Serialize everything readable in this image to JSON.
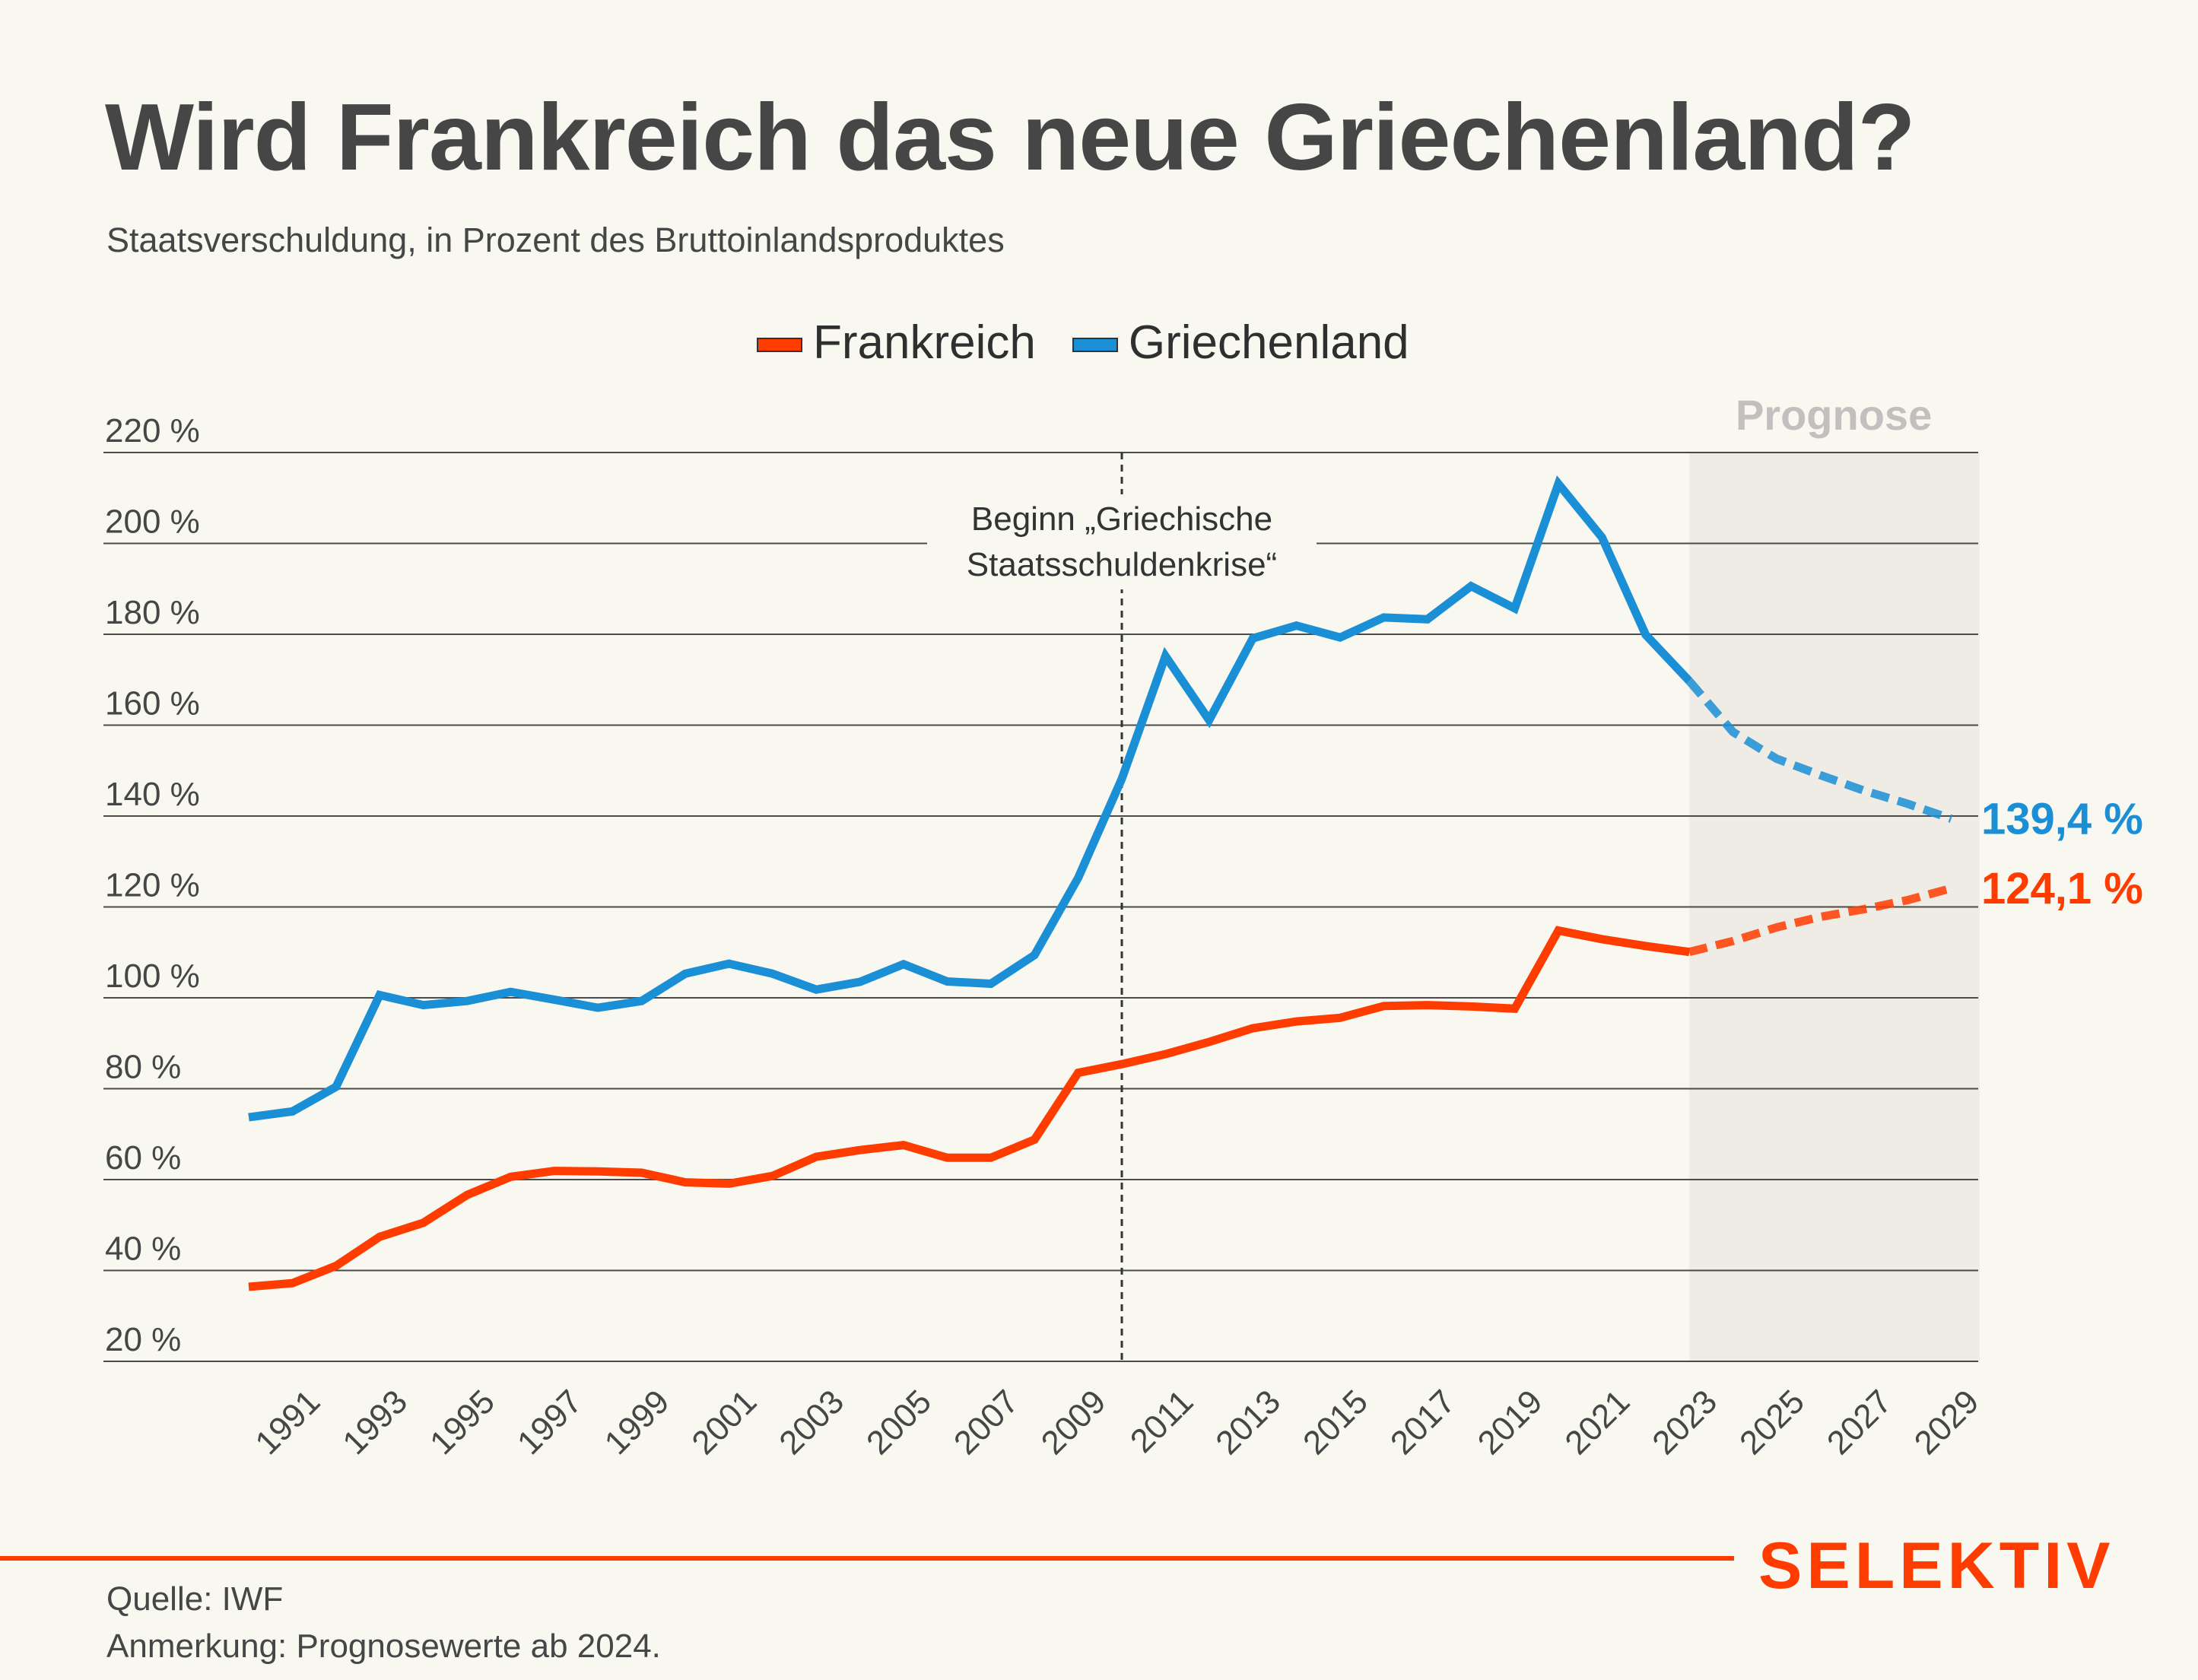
{
  "header": {
    "title": "Wird Frankreich das neue Griechenland?",
    "subtitle": "Staatsverschuldung, in Prozent des Bruttoinlandsproduktes"
  },
  "legend": [
    {
      "label": "Frankreich",
      "color": "#ff3c00"
    },
    {
      "label": "Griechenland",
      "color": "#1a8fd6"
    }
  ],
  "footer": {
    "source": "Quelle: IWF",
    "note": "Anmerkung: Prognosewerte ab 2024.",
    "brand": "SELEKTIV",
    "brand_color": "#ff3c00"
  },
  "chart_data": {
    "type": "line",
    "title": "Wird Frankreich das neue Griechenland?",
    "subtitle": "Staatsverschuldung, in Prozent des Bruttoinlandsproduktes",
    "xlabel": "",
    "ylabel": "",
    "x": [
      1990,
      1991,
      1992,
      1993,
      1994,
      1995,
      1996,
      1997,
      1998,
      1999,
      2000,
      2001,
      2002,
      2003,
      2004,
      2005,
      2006,
      2007,
      2008,
      2009,
      2010,
      2011,
      2012,
      2013,
      2014,
      2015,
      2016,
      2017,
      2018,
      2019,
      2020,
      2021,
      2022,
      2023,
      2024,
      2025,
      2026,
      2027,
      2028,
      2029
    ],
    "xticks": [
      "1991",
      "1993",
      "1995",
      "1997",
      "1999",
      "2001",
      "2003",
      "2005",
      "2007",
      "2009",
      "2011",
      "2013",
      "2015",
      "2017",
      "2019",
      "2021",
      "2023",
      "2025",
      "2027",
      "2029"
    ],
    "xtick_years": [
      1991,
      1993,
      1995,
      1997,
      1999,
      2001,
      2003,
      2005,
      2007,
      2009,
      2011,
      2013,
      2015,
      2017,
      2019,
      2021,
      2023,
      2025,
      2027,
      2029
    ],
    "ylim": [
      20,
      220
    ],
    "yticks": [
      20,
      40,
      60,
      80,
      100,
      120,
      140,
      160,
      180,
      200,
      220
    ],
    "ytick_labels": [
      "20 %",
      "40 %",
      "60 %",
      "80 %",
      "100 %",
      "120 %",
      "140 %",
      "160 %",
      "180 %",
      "200 %",
      "220 %"
    ],
    "grid": "horizontal",
    "legend_position": "top-center",
    "forecast_start_year": 2023,
    "forecast_label": "Prognose",
    "series": [
      {
        "name": "Frankreich",
        "color": "#ff3c00",
        "values": [
          36.4,
          37.2,
          41.0,
          47.4,
          50.5,
          56.6,
          60.6,
          61.9,
          61.8,
          61.5,
          59.4,
          59.1,
          60.8,
          65.0,
          66.5,
          67.6,
          64.8,
          64.8,
          68.8,
          83.5,
          85.4,
          87.6,
          90.3,
          93.3,
          94.8,
          95.6,
          98.2,
          98.4,
          98.1,
          97.6,
          114.8,
          112.9,
          111.4,
          110.1,
          112.5,
          115.5,
          117.8,
          119.5,
          121.5,
          124.1
        ],
        "end_label": "124,1 %"
      },
      {
        "name": "Griechenland",
        "color": "#1a8fd6",
        "values": [
          73.7,
          75.0,
          80.4,
          100.6,
          98.4,
          99.3,
          101.3,
          99.6,
          97.8,
          99.3,
          105.3,
          107.5,
          105.3,
          101.8,
          103.5,
          107.4,
          103.6,
          103.1,
          109.4,
          126.4,
          148.2,
          175.2,
          161.1,
          179.1,
          181.9,
          179.3,
          183.7,
          183.3,
          190.6,
          185.7,
          213.1,
          201.3,
          179.9,
          169.7,
          158.5,
          152.6,
          149.0,
          145.6,
          142.7,
          139.4
        ],
        "end_label": "139,4 %"
      }
    ],
    "annotations": [
      {
        "x": 2010,
        "text_lines": [
          "Beginn „Griechische",
          "Staatsschuldenkrise“"
        ],
        "style": "dashed-vertical-line"
      }
    ]
  }
}
